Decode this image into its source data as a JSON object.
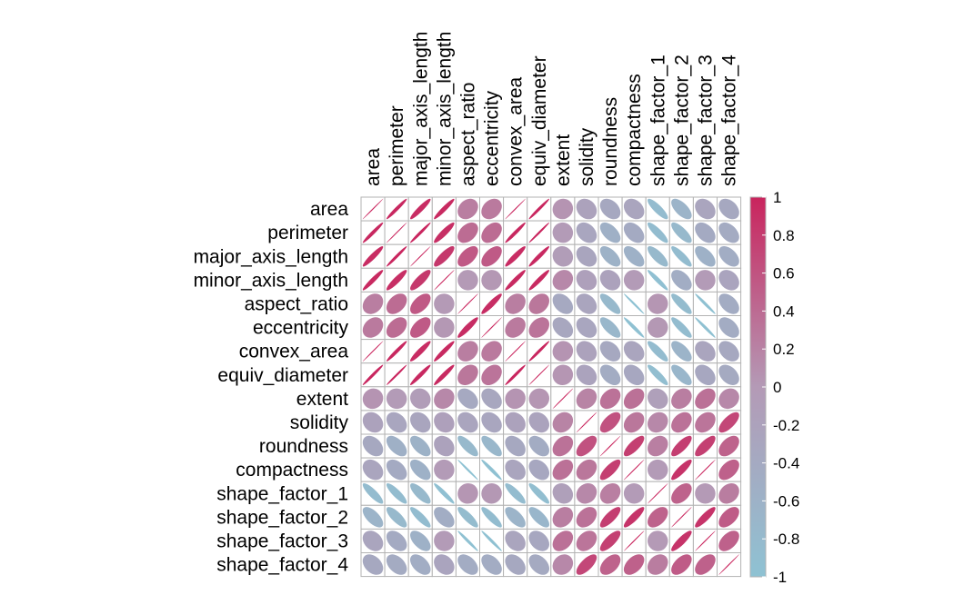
{
  "chart_data": {
    "type": "heatmap",
    "title": "",
    "variables": [
      "area",
      "perimeter",
      "major_axis_length",
      "minor_axis_length",
      "aspect_ratio",
      "eccentricity",
      "convex_area",
      "equiv_diameter",
      "extent",
      "solidity",
      "roundness",
      "compactness",
      "shape_factor_1",
      "shape_factor_2",
      "shape_factor_3",
      "shape_factor_4"
    ],
    "matrix": [
      [
        1,
        0.97,
        0.93,
        0.95,
        0.24,
        0.27,
        1,
        0.98,
        0.05,
        -0.2,
        -0.36,
        -0.27,
        -0.85,
        -0.64,
        -0.27,
        -0.36
      ],
      [
        0.97,
        1,
        0.98,
        0.91,
        0.39,
        0.39,
        0.97,
        0.99,
        -0.02,
        -0.3,
        -0.55,
        -0.41,
        -0.86,
        -0.77,
        -0.41,
        -0.43
      ],
      [
        0.93,
        0.98,
        1,
        0.83,
        0.55,
        0.54,
        0.93,
        0.96,
        -0.08,
        -0.28,
        -0.6,
        -0.57,
        -0.77,
        -0.86,
        -0.57,
        -0.48
      ],
      [
        0.95,
        0.91,
        0.83,
        1,
        -0.01,
        0.02,
        0.95,
        0.95,
        0.15,
        -0.16,
        -0.21,
        -0.02,
        -0.95,
        -0.47,
        -0.02,
        -0.26
      ],
      [
        0.24,
        0.39,
        0.55,
        -0.01,
        1,
        0.92,
        0.24,
        0.3,
        -0.37,
        -0.27,
        -0.77,
        -0.99,
        0.03,
        -0.84,
        -0.98,
        -0.45
      ],
      [
        0.27,
        0.39,
        0.54,
        0.02,
        0.92,
        1,
        0.27,
        0.32,
        -0.32,
        -0.3,
        -0.72,
        -0.97,
        0.02,
        -0.86,
        -0.98,
        -0.45
      ],
      [
        1,
        0.97,
        0.93,
        0.95,
        0.24,
        0.27,
        1,
        0.98,
        0.05,
        -0.21,
        -0.36,
        -0.27,
        -0.85,
        -0.64,
        -0.27,
        -0.36
      ],
      [
        0.98,
        0.99,
        0.96,
        0.95,
        0.3,
        0.32,
        0.98,
        1,
        0.03,
        -0.23,
        -0.44,
        -0.33,
        -0.89,
        -0.71,
        -0.33,
        -0.39
      ],
      [
        0.05,
        -0.02,
        -0.08,
        0.15,
        -0.37,
        -0.32,
        0.05,
        0.03,
        1,
        0.19,
        0.34,
        0.35,
        -0.14,
        0.24,
        0.35,
        0.15
      ],
      [
        -0.2,
        -0.3,
        -0.28,
        -0.16,
        -0.27,
        -0.3,
        -0.21,
        -0.23,
        0.19,
        1,
        0.61,
        0.3,
        0.15,
        0.34,
        0.31,
        0.7
      ],
      [
        -0.36,
        -0.55,
        -0.6,
        -0.21,
        -0.77,
        -0.72,
        -0.36,
        -0.44,
        0.34,
        0.61,
        1,
        0.77,
        0.23,
        0.78,
        0.76,
        0.47
      ],
      [
        -0.27,
        -0.41,
        -0.57,
        -0.02,
        -0.99,
        -0.97,
        -0.27,
        -0.33,
        0.35,
        0.3,
        0.77,
        1,
        -0.02,
        0.87,
        1,
        0.48
      ],
      [
        -0.85,
        -0.86,
        -0.77,
        -0.95,
        0.03,
        0.02,
        -0.85,
        -0.89,
        -0.14,
        0.15,
        0.23,
        -0.02,
        1,
        0.47,
        -0.01,
        0.25
      ],
      [
        -0.64,
        -0.77,
        -0.86,
        -0.47,
        -0.84,
        -0.86,
        -0.64,
        -0.71,
        0.24,
        0.34,
        0.78,
        0.87,
        0.47,
        1,
        0.87,
        0.53
      ],
      [
        -0.27,
        -0.41,
        -0.57,
        -0.02,
        -0.98,
        -0.98,
        -0.27,
        -0.33,
        0.35,
        0.31,
        0.76,
        1,
        -0.01,
        0.87,
        1,
        0.48
      ],
      [
        -0.36,
        -0.43,
        -0.48,
        -0.26,
        -0.45,
        -0.45,
        -0.36,
        -0.39,
        0.15,
        0.7,
        0.47,
        0.48,
        0.25,
        0.53,
        0.48,
        1
      ]
    ],
    "color_scale": {
      "low_color": "#8ec2d3",
      "mid_color": "#b49ab6",
      "high_color": "#c9245d",
      "range": [
        -1,
        1
      ],
      "ticks": [
        "1",
        "0.8",
        "0.6",
        "0.4",
        "0.2",
        "0",
        "-0.2",
        "-0.4",
        "-0.6",
        "-0.8",
        "-1"
      ]
    },
    "legend_placement": "right",
    "marker": "ellipse"
  }
}
